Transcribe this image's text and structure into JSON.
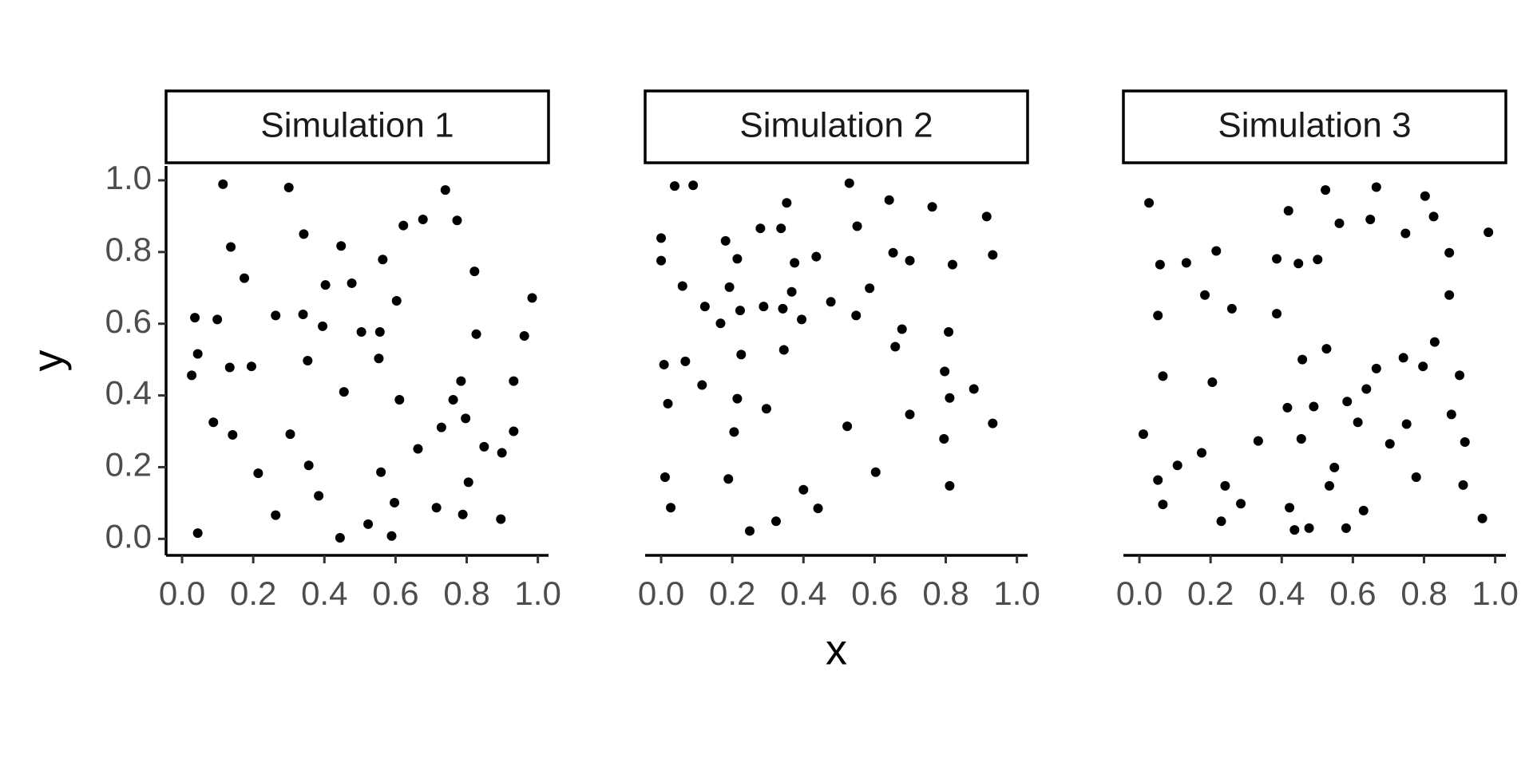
{
  "chart_data": [
    {
      "type": "scatter",
      "title": "Simulation 1",
      "ylabel": "y",
      "color": "#000000",
      "xlim": [
        -0.045,
        1.03
      ],
      "ylim": [
        -0.046,
        1.04
      ],
      "xticks": [
        {
          "value": 0,
          "label": "0.0"
        },
        {
          "value": 0.2,
          "label": "0.2"
        },
        {
          "value": 0.4,
          "label": "0.4"
        },
        {
          "value": 0.6,
          "label": "0.6"
        },
        {
          "value": 0.8,
          "label": "0.8"
        },
        {
          "value": 1,
          "label": "1.0"
        }
      ],
      "yticks": [
        {
          "value": 0,
          "label": "0.0"
        },
        {
          "value": 0.2,
          "label": "0.2"
        },
        {
          "value": 0.4,
          "label": "0.4"
        },
        {
          "value": 0.6,
          "label": "0.6"
        },
        {
          "value": 0.8,
          "label": "0.8"
        },
        {
          "value": 1,
          "label": "1.0"
        }
      ],
      "x": [
        0.115,
        0.3,
        0.74,
        0.137,
        0.342,
        0.447,
        0.622,
        0.677,
        0.773,
        0.175,
        0.403,
        0.477,
        0.564,
        0.603,
        0.822,
        0.984,
        0.036,
        0.099,
        0.263,
        0.34,
        0.395,
        0.504,
        0.556,
        0.827,
        0.962,
        0.044,
        0.027,
        0.134,
        0.195,
        0.353,
        0.553,
        0.784,
        0.932,
        0.455,
        0.611,
        0.762,
        0.088,
        0.142,
        0.304,
        0.729,
        0.797,
        0.932,
        0.663,
        0.849,
        0.899,
        0.356,
        0.214,
        0.559,
        0.805,
        0.384,
        0.597,
        0.715,
        0.789,
        0.263,
        0.896,
        0.523,
        0.044,
        0.444,
        0.589
      ],
      "values": [
        0.989,
        0.98,
        0.973,
        0.814,
        0.85,
        0.817,
        0.874,
        0.891,
        0.888,
        0.727,
        0.708,
        0.713,
        0.779,
        0.664,
        0.746,
        0.672,
        0.617,
        0.612,
        0.623,
        0.626,
        0.593,
        0.577,
        0.577,
        0.571,
        0.566,
        0.516,
        0.456,
        0.478,
        0.481,
        0.497,
        0.503,
        0.44,
        0.44,
        0.41,
        0.388,
        0.388,
        0.325,
        0.29,
        0.292,
        0.311,
        0.336,
        0.3,
        0.251,
        0.257,
        0.24,
        0.205,
        0.183,
        0.186,
        0.158,
        0.12,
        0.101,
        0.087,
        0.068,
        0.066,
        0.055,
        0.041,
        0.016,
        0.003,
        0.008
      ]
    },
    {
      "type": "scatter",
      "title": "Simulation 2",
      "xlabel": "x",
      "color": "#000000",
      "xlim": [
        -0.045,
        1.03
      ],
      "ylim": [
        -0.046,
        1.04
      ],
      "xticks": [
        {
          "value": 0,
          "label": "0.0"
        },
        {
          "value": 0.2,
          "label": "0.2"
        },
        {
          "value": 0.4,
          "label": "0.4"
        },
        {
          "value": 0.6,
          "label": "0.6"
        },
        {
          "value": 0.8,
          "label": "0.8"
        },
        {
          "value": 1,
          "label": "1.0"
        }
      ],
      "x": [
        0.038,
        0.09,
        0.529,
        0.353,
        0.641,
        0.762,
        0.915,
        0.0,
        0.181,
        0.279,
        0.337,
        0.551,
        0.0,
        0.214,
        0.375,
        0.436,
        0.652,
        0.699,
        0.819,
        0.932,
        0.06,
        0.192,
        0.367,
        0.586,
        0.123,
        0.167,
        0.222,
        0.288,
        0.342,
        0.395,
        0.477,
        0.548,
        0.677,
        0.808,
        0.658,
        0.345,
        0.225,
        0.008,
        0.068,
        0.797,
        0.115,
        0.879,
        0.019,
        0.214,
        0.811,
        0.296,
        0.699,
        0.932,
        0.523,
        0.205,
        0.795,
        0.603,
        0.011,
        0.189,
        0.811,
        0.4,
        0.027,
        0.441,
        0.323,
        0.249
      ],
      "values": [
        0.984,
        0.986,
        0.992,
        0.937,
        0.945,
        0.926,
        0.899,
        0.839,
        0.831,
        0.866,
        0.866,
        0.872,
        0.776,
        0.781,
        0.77,
        0.787,
        0.798,
        0.776,
        0.765,
        0.792,
        0.705,
        0.702,
        0.689,
        0.699,
        0.648,
        0.601,
        0.637,
        0.648,
        0.642,
        0.612,
        0.661,
        0.623,
        0.585,
        0.577,
        0.536,
        0.527,
        0.514,
        0.486,
        0.495,
        0.467,
        0.429,
        0.418,
        0.377,
        0.391,
        0.393,
        0.363,
        0.347,
        0.322,
        0.314,
        0.298,
        0.279,
        0.186,
        0.172,
        0.167,
        0.148,
        0.137,
        0.087,
        0.085,
        0.049,
        0.022
      ]
    },
    {
      "type": "scatter",
      "title": "Simulation 3",
      "color": "#000000",
      "xlim": [
        -0.045,
        1.03
      ],
      "ylim": [
        -0.046,
        1.04
      ],
      "xticks": [
        {
          "value": 0,
          "label": "0.0"
        },
        {
          "value": 0.2,
          "label": "0.2"
        },
        {
          "value": 0.4,
          "label": "0.4"
        },
        {
          "value": 0.6,
          "label": "0.6"
        },
        {
          "value": 0.8,
          "label": "0.8"
        },
        {
          "value": 1,
          "label": "1.0"
        }
      ],
      "x": [
        0.027,
        0.419,
        0.523,
        0.666,
        0.803,
        0.058,
        0.132,
        0.216,
        0.386,
        0.447,
        0.501,
        0.562,
        0.649,
        0.748,
        0.827,
        0.871,
        0.981,
        0.052,
        0.184,
        0.26,
        0.386,
        0.871,
        0.066,
        0.205,
        0.458,
        0.526,
        0.666,
        0.742,
        0.797,
        0.83,
        0.9,
        0.638,
        0.416,
        0.49,
        0.584,
        0.877,
        0.614,
        0.751,
        0.334,
        0.455,
        0.704,
        0.915,
        0.011,
        0.107,
        0.052,
        0.175,
        0.548,
        0.778,
        0.241,
        0.534,
        0.91,
        0.066,
        0.285,
        0.422,
        0.63,
        0.23,
        0.436,
        0.477,
        0.581,
        0.964
      ],
      "values": [
        0.937,
        0.915,
        0.973,
        0.981,
        0.956,
        0.765,
        0.77,
        0.803,
        0.781,
        0.768,
        0.779,
        0.88,
        0.891,
        0.852,
        0.899,
        0.798,
        0.855,
        0.623,
        0.68,
        0.642,
        0.628,
        0.68,
        0.454,
        0.437,
        0.5,
        0.53,
        0.475,
        0.505,
        0.481,
        0.549,
        0.456,
        0.418,
        0.366,
        0.369,
        0.383,
        0.347,
        0.325,
        0.32,
        0.273,
        0.279,
        0.265,
        0.27,
        0.292,
        0.205,
        0.164,
        0.24,
        0.199,
        0.172,
        0.148,
        0.148,
        0.15,
        0.096,
        0.098,
        0.087,
        0.079,
        0.049,
        0.025,
        0.03,
        0.03,
        0.057
      ]
    }
  ]
}
